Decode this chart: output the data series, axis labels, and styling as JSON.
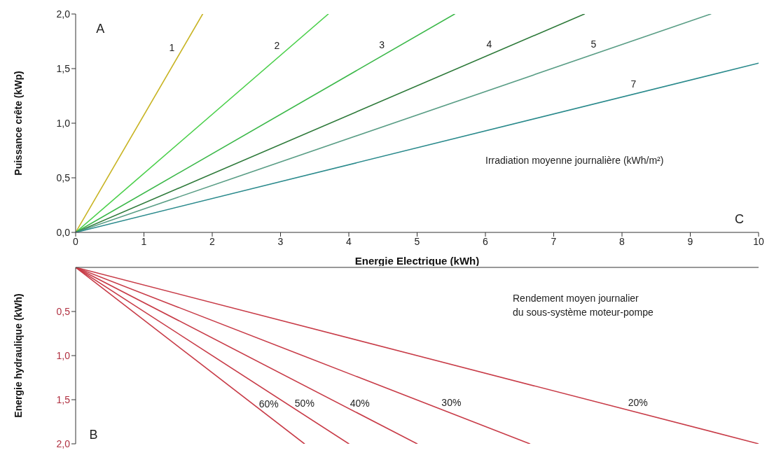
{
  "chart_data": [
    {
      "type": "line",
      "xlabel": "Energie Electrique (kWh)",
      "ylabel": "Puissance crête (kWp)",
      "xlim": [
        0,
        10
      ],
      "xticks": [
        0,
        1,
        2,
        3,
        4,
        5,
        6,
        7,
        8,
        9,
        10
      ],
      "ylim": [
        0,
        2
      ],
      "yticks": [
        {
          "value": 0,
          "label": "0,0"
        },
        {
          "value": 0.5,
          "label": "0,5"
        },
        {
          "value": 1,
          "label": "1,0"
        },
        {
          "value": 1.5,
          "label": "1,5"
        },
        {
          "value": 2,
          "label": "2,0"
        }
      ],
      "annotations": [
        "A",
        "Irradiation moyenne journalière (kWh/m²)",
        "C"
      ],
      "series": [
        {
          "name": "1",
          "color": "#c8b424",
          "x": [
            0,
            1.86
          ],
          "values": [
            0,
            2
          ]
        },
        {
          "name": "2",
          "color": "#4cd04c",
          "x": [
            0,
            3.7
          ],
          "values": [
            0,
            2
          ]
        },
        {
          "name": "3",
          "color": "#3cb84a",
          "x": [
            0,
            5.55
          ],
          "values": [
            0,
            2
          ]
        },
        {
          "name": "4",
          "color": "#2e7a3a",
          "x": [
            0,
            7.45
          ],
          "values": [
            0,
            2
          ]
        },
        {
          "name": "5",
          "color": "#5a9e86",
          "x": [
            0,
            9.3
          ],
          "values": [
            0,
            2
          ]
        },
        {
          "name": "7",
          "color": "#2a8a8c",
          "x": [
            0,
            10
          ],
          "values": [
            0,
            1.55
          ]
        }
      ]
    },
    {
      "type": "line",
      "ylabel": "Energie hydraulique (kWh)",
      "xlim": [
        0,
        10
      ],
      "ylim": [
        2,
        0
      ],
      "yticks": [
        {
          "value": 0.5,
          "label": "0,5"
        },
        {
          "value": 1,
          "label": "1,0"
        },
        {
          "value": 1.5,
          "label": "1,5"
        },
        {
          "value": 2,
          "label": "2,0"
        }
      ],
      "tick_labels": "y",
      "annotations": [
        "Rendement moyen journalier\ndu sous-système moteur-pompe",
        "B"
      ],
      "series": [
        {
          "name": "20%",
          "color": "#c83c48",
          "x": [
            0,
            10
          ],
          "values": [
            0,
            2
          ]
        },
        {
          "name": "30%",
          "color": "#c83c48",
          "x": [
            0,
            6.65
          ],
          "values": [
            0,
            2
          ]
        },
        {
          "name": "40%",
          "color": "#c83c48",
          "x": [
            0,
            5
          ],
          "values": [
            0,
            2
          ]
        },
        {
          "name": "50%",
          "color": "#c83c48",
          "x": [
            0,
            4
          ],
          "values": [
            0,
            2
          ]
        },
        {
          "name": "60%",
          "color": "#c83c48",
          "x": [
            0,
            3.35
          ],
          "values": [
            0,
            2
          ]
        }
      ]
    }
  ]
}
